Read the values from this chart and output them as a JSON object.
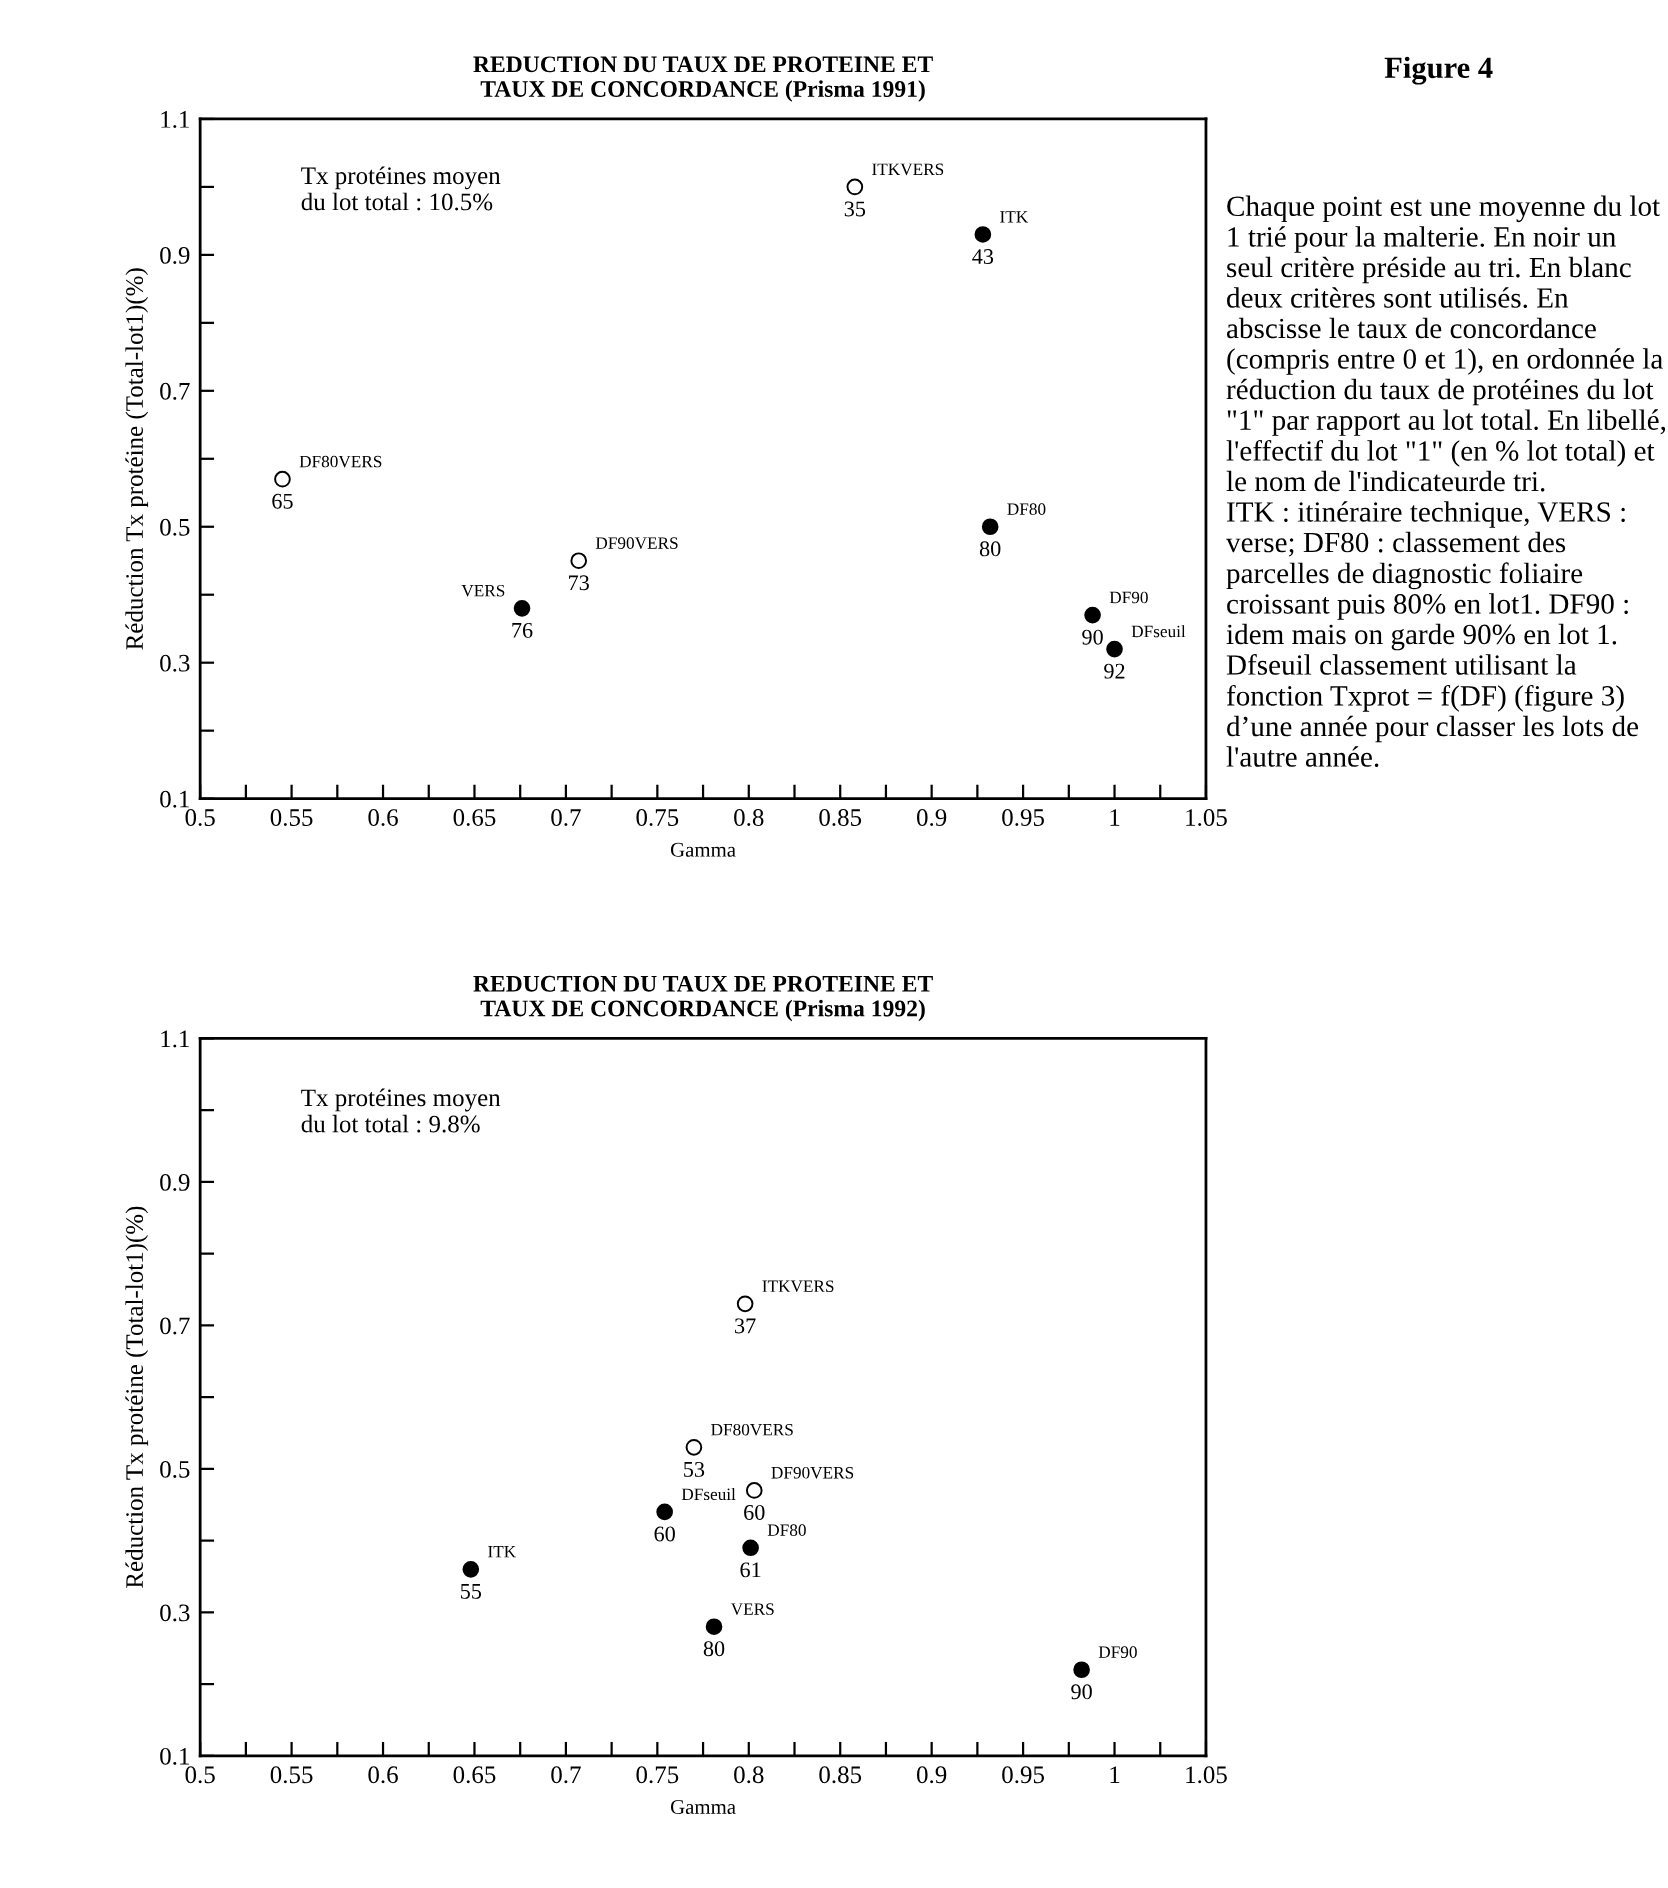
{
  "chart_data": [
    {
      "type": "scatter",
      "title": "REDUCTION DU TAUX DE PROTEINE ET\nTAUX DE CONCORDANCE (Prisma 1991)",
      "xlabel": "Gamma",
      "ylabel": "Réduction Tx protéine (Total-lot1)(%)",
      "marker": "circle",
      "grid": false,
      "xlim": [
        0.5,
        1.05
      ],
      "ylim": [
        0.1,
        1.1
      ],
      "xticks": [
        0.5,
        {
          "value": 0.525,
          "label": null
        },
        0.55,
        {
          "value": 0.575,
          "label": null
        },
        0.6,
        {
          "value": 0.625,
          "label": null
        },
        0.65,
        {
          "value": 0.675,
          "label": null
        },
        0.7,
        {
          "value": 0.725,
          "label": null
        },
        0.75,
        {
          "value": 0.775,
          "label": null
        },
        0.8,
        {
          "value": 0.825,
          "label": null
        },
        0.85,
        {
          "value": 0.875,
          "label": null
        },
        0.9,
        {
          "value": 0.925,
          "label": null
        },
        0.95,
        {
          "value": 0.975,
          "label": null
        },
        1,
        {
          "value": 1.025,
          "label": null
        },
        1.05
      ],
      "yticks": [
        0.1,
        {
          "value": 0.2,
          "label": null
        },
        0.3,
        {
          "value": 0.4,
          "label": null
        },
        0.5,
        {
          "value": 0.6,
          "label": null
        },
        0.7,
        {
          "value": 0.8,
          "label": null
        },
        0.9,
        {
          "value": 1.0,
          "label": null
        },
        1.1
      ],
      "series": [
        {
          "color": "#000000",
          "x": [
            0.676,
            0.928,
            0.932,
            0.988,
            1.0
          ],
          "values": [
            0.38,
            0.93,
            0.5,
            0.37,
            0.32
          ]
        },
        {
          "color": "#ffffff",
          "x": [
            0.545,
            0.707,
            0.858
          ],
          "values": [
            0.57,
            0.45,
            1.0
          ]
        }
      ],
      "annotations": [
        "Tx protéines moyen\ndu lot total : 10.5%",
        {
          "text": "76",
          "x": 0.676,
          "y": 0.38
        },
        {
          "text": "VERS",
          "x": 0.676,
          "y": 0.38
        },
        {
          "text": "43",
          "x": 0.928,
          "y": 0.93
        },
        {
          "text": "ITK",
          "x": 0.928,
          "y": 0.93
        },
        {
          "text": "80",
          "x": 0.932,
          "y": 0.5
        },
        {
          "text": "DF80",
          "x": 0.932,
          "y": 0.5
        },
        {
          "text": "90",
          "x": 0.988,
          "y": 0.37
        },
        {
          "text": "DF90",
          "x": 0.988,
          "y": 0.37
        },
        {
          "text": "92",
          "x": 1.0,
          "y": 0.32
        },
        {
          "text": "DFseuil",
          "x": 1.0,
          "y": 0.32
        },
        {
          "text": "65",
          "x": 0.545,
          "y": 0.57
        },
        {
          "text": "DF80VERS",
          "x": 0.545,
          "y": 0.57
        },
        {
          "text": "73",
          "x": 0.707,
          "y": 0.45
        },
        {
          "text": "DF90VERS",
          "x": 0.707,
          "y": 0.45
        },
        {
          "text": "35",
          "x": 0.858,
          "y": 1.0
        },
        {
          "text": "ITKVERS",
          "x": 0.858,
          "y": 1.0
        }
      ]
    },
    {
      "type": "scatter",
      "title": "REDUCTION DU TAUX DE PROTEINE ET\nTAUX DE CONCORDANCE (Prisma 1992)",
      "xlabel": "Gamma",
      "ylabel": "Réduction Tx protéine (Total-lot1)(%)",
      "marker": "circle",
      "grid": false,
      "xlim": [
        0.5,
        1.05
      ],
      "ylim": [
        0.1,
        1.1
      ],
      "xticks": [
        0.5,
        {
          "value": 0.525,
          "label": null
        },
        0.55,
        {
          "value": 0.575,
          "label": null
        },
        0.6,
        {
          "value": 0.625,
          "label": null
        },
        0.65,
        {
          "value": 0.675,
          "label": null
        },
        0.7,
        {
          "value": 0.725,
          "label": null
        },
        0.75,
        {
          "value": 0.775,
          "label": null
        },
        0.8,
        {
          "value": 0.825,
          "label": null
        },
        0.85,
        {
          "value": 0.875,
          "label": null
        },
        0.9,
        {
          "value": 0.925,
          "label": null
        },
        0.95,
        {
          "value": 0.975,
          "label": null
        },
        1,
        {
          "value": 1.025,
          "label": null
        },
        1.05
      ],
      "yticks": [
        0.1,
        {
          "value": 0.2,
          "label": null
        },
        0.3,
        {
          "value": 0.4,
          "label": null
        },
        0.5,
        {
          "value": 0.6,
          "label": null
        },
        0.7,
        {
          "value": 0.8,
          "label": null
        },
        0.9,
        {
          "value": 1.0,
          "label": null
        },
        1.1
      ],
      "series": [
        {
          "color": "#000000",
          "x": [
            0.648,
            0.754,
            0.801,
            0.781,
            0.982
          ],
          "values": [
            0.36,
            0.44,
            0.39,
            0.28,
            0.22
          ]
        },
        {
          "color": "#ffffff",
          "x": [
            0.77,
            0.798,
            0.803
          ],
          "values": [
            0.53,
            0.73,
            0.47
          ]
        }
      ],
      "annotations": [
        "Tx protéines moyen\ndu lot total : 9.8%",
        {
          "text": "55",
          "x": 0.648,
          "y": 0.36
        },
        {
          "text": "ITK",
          "x": 0.648,
          "y": 0.36
        },
        {
          "text": "60",
          "x": 0.754,
          "y": 0.44
        },
        {
          "text": "DFseuil",
          "x": 0.754,
          "y": 0.44
        },
        {
          "text": "61",
          "x": 0.801,
          "y": 0.39
        },
        {
          "text": "DF80",
          "x": 0.801,
          "y": 0.39
        },
        {
          "text": "80",
          "x": 0.781,
          "y": 0.28
        },
        {
          "text": "VERS",
          "x": 0.781,
          "y": 0.28
        },
        {
          "text": "90",
          "x": 0.982,
          "y": 0.22
        },
        {
          "text": "DF90",
          "x": 0.982,
          "y": 0.22
        },
        {
          "text": "53",
          "x": 0.77,
          "y": 0.53
        },
        {
          "text": "DF80VERS",
          "x": 0.77,
          "y": 0.53
        },
        {
          "text": "37",
          "x": 0.798,
          "y": 0.73
        },
        {
          "text": "ITKVERS",
          "x": 0.798,
          "y": 0.73
        },
        {
          "text": "60",
          "x": 0.803,
          "y": 0.47
        },
        {
          "text": "DF90VERS",
          "x": 0.803,
          "y": 0.47
        }
      ]
    },
    {
      "type": "other",
      "title": "Figure 4",
      "annotations": [
        "Chaque point est une moyenne du lot 1 trié pour la malterie. En noir un seul critère préside au tri. En blanc deux critères sont utilisés. En abscisse le taux de concordance (compris entre 0 et 1), en ordonnée la réduction du taux de protéines du lot \"1\" par rapport au lot total. En libellé, l'effectif du lot \"1\" (en % lot total) et le nom de l'indicateurde tri.\nITK : itinéraire technique, VERS : verse; DF80 : classement des parcelles de diagnostic foliaire croissant puis 80% en lot1. DF90 : idem mais on garde 90% en lot 1.\nDfseuil classement utilisant la fonction Txprot = f(DF) (figure 3) d’une année pour classer les lots de l'autre année."
      ]
    }
  ]
}
